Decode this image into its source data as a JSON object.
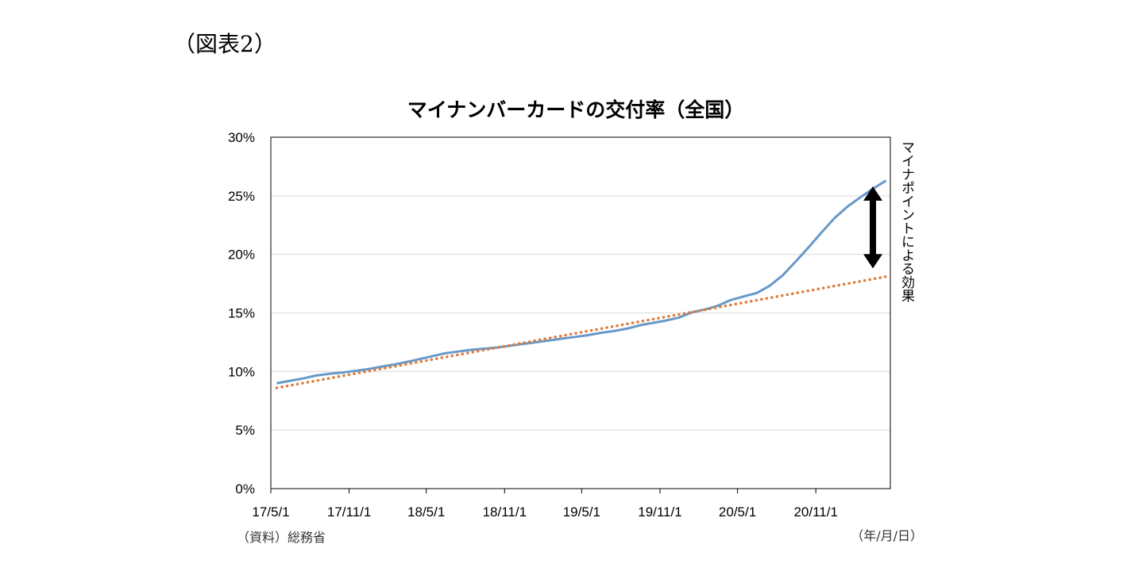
{
  "figure_label": "（図表2）",
  "source_note": "（資料）総務省",
  "unit_note": "（年/月/日）",
  "annotation": "マイナポイントによる効果",
  "colors": {
    "actual_line": "#6699c9",
    "trend_line": "#e07b39",
    "grid": "#d9d9d9",
    "axis": "#000000",
    "arrow": "#000000"
  },
  "chart_data": {
    "type": "line",
    "title": "マイナンバーカードの交付率（全国）",
    "xlabel": "",
    "ylabel": "",
    "ylim": [
      0,
      30
    ],
    "yticks": [
      0,
      5,
      10,
      15,
      20,
      25,
      30
    ],
    "ytick_labels": [
      "0%",
      "5%",
      "10%",
      "15%",
      "20%",
      "25%",
      "30%"
    ],
    "xlim": [
      "2017-05-01",
      "2021-04-25"
    ],
    "xticks": [
      "2017-05-01",
      "2017-11-01",
      "2018-05-01",
      "2018-11-01",
      "2019-05-01",
      "2019-11-01",
      "2020-05-01",
      "2020-11-01"
    ],
    "xtick_labels": [
      "17/5/1",
      "17/11/1",
      "18/5/1",
      "18/11/1",
      "19/5/1",
      "19/11/1",
      "20/5/1",
      "20/11/1"
    ],
    "grid": "horizontal",
    "series": [
      {
        "style": "solid",
        "color": "#6699c9",
        "points": [
          [
            "2017-05-15",
            9.0
          ],
          [
            "2017-06-15",
            9.2
          ],
          [
            "2017-07-15",
            9.4
          ],
          [
            "2017-08-15",
            9.65
          ],
          [
            "2017-09-15",
            9.8
          ],
          [
            "2017-10-15",
            9.9
          ],
          [
            "2017-11-15",
            10.05
          ],
          [
            "2017-12-15",
            10.2
          ],
          [
            "2018-01-15",
            10.4
          ],
          [
            "2018-02-15",
            10.6
          ],
          [
            "2018-03-15",
            10.8
          ],
          [
            "2018-04-15",
            11.05
          ],
          [
            "2018-05-15",
            11.3
          ],
          [
            "2018-06-15",
            11.55
          ],
          [
            "2018-07-15",
            11.7
          ],
          [
            "2018-08-15",
            11.85
          ],
          [
            "2018-09-15",
            11.95
          ],
          [
            "2018-10-15",
            12.05
          ],
          [
            "2018-11-15",
            12.2
          ],
          [
            "2018-12-15",
            12.35
          ],
          [
            "2019-01-15",
            12.5
          ],
          [
            "2019-02-15",
            12.65
          ],
          [
            "2019-03-15",
            12.8
          ],
          [
            "2019-04-15",
            12.95
          ],
          [
            "2019-05-15",
            13.1
          ],
          [
            "2019-06-15",
            13.3
          ],
          [
            "2019-07-15",
            13.45
          ],
          [
            "2019-08-15",
            13.65
          ],
          [
            "2019-09-15",
            13.95
          ],
          [
            "2019-10-15",
            14.15
          ],
          [
            "2019-11-15",
            14.35
          ],
          [
            "2019-12-15",
            14.6
          ],
          [
            "2020-01-15",
            15.05
          ],
          [
            "2020-02-15",
            15.3
          ],
          [
            "2020-03-15",
            15.6
          ],
          [
            "2020-04-15",
            16.1
          ],
          [
            "2020-05-15",
            16.4
          ],
          [
            "2020-06-15",
            16.7
          ],
          [
            "2020-07-15",
            17.3
          ],
          [
            "2020-08-15",
            18.2
          ],
          [
            "2020-09-15",
            19.4
          ],
          [
            "2020-10-15",
            20.6
          ],
          [
            "2020-11-15",
            21.9
          ],
          [
            "2020-12-15",
            23.1
          ],
          [
            "2021-01-15",
            24.1
          ],
          [
            "2021-02-15",
            24.9
          ],
          [
            "2021-03-15",
            25.6
          ],
          [
            "2021-04-15",
            26.3
          ]
        ]
      },
      {
        "style": "dotted",
        "color": "#e07b39",
        "points": [
          [
            "2017-05-15",
            8.6
          ],
          [
            "2021-04-15",
            18.1
          ]
        ]
      }
    ],
    "annotation_arrow": {
      "x": "2021-03-15",
      "from": 25.8,
      "to": 18.8
    }
  }
}
